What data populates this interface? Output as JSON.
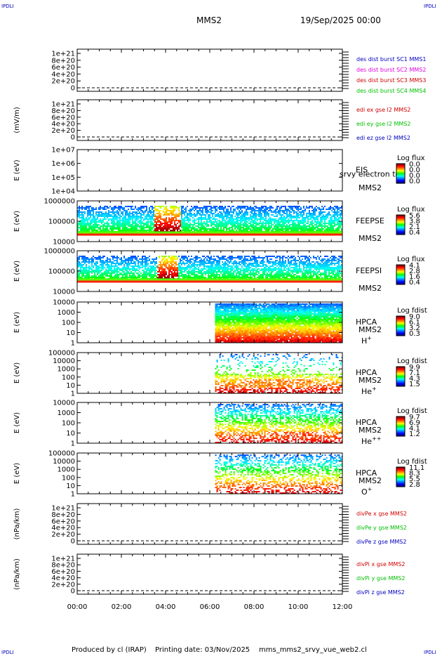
{
  "corner_labels": {
    "tl": "IPDLI",
    "tr": "IPDLI",
    "bl": "IPDLI",
    "br": "IPDLI"
  },
  "header": {
    "spacecraft": "MMS2",
    "date": "19/Sep/2025 00:00"
  },
  "footer": {
    "produced_by": "Produced by cl (IRAP)",
    "printing_date": "Printing date: 03/Nov/2025",
    "filename": "mms_mms2_srvy_vue_web2.cl"
  },
  "x_ticks": [
    "00:00",
    "02:00",
    "04:00",
    "06:00",
    "08:00",
    "10:00",
    "12:00"
  ],
  "colors": {
    "red": "#d00000",
    "magenta": "#e000e0",
    "green": "#00c000",
    "blue": "#0000c0"
  },
  "chart_data": [
    {
      "type": "line",
      "id": "des-dist",
      "ylabel": "",
      "y_ticks": [
        "1e+21",
        "8e+20",
        "6e+20",
        "4e+20",
        "2e+20",
        "0"
      ],
      "legend": [
        {
          "name": "des dist burst SC1 MMS1",
          "color": "#0000c0"
        },
        {
          "name": "des dist burst SC2 MMS2",
          "color": "#e000e0"
        },
        {
          "name": "des dist burst SC3 MMS3",
          "color": "#d00000"
        },
        {
          "name": "des dist burst SC4 MMS4",
          "color": "#00c000"
        }
      ]
    },
    {
      "type": "line",
      "id": "edi",
      "ylabel": "(mV/m)",
      "y_ticks": [
        "1e+21",
        "8e+20",
        "6e+20",
        "4e+20",
        "2e+20",
        "0"
      ],
      "legend": [
        {
          "name": "edi ex gse l2 MMS2",
          "color": "#d00000"
        },
        {
          "name": "edi ey gse l2 MMS2",
          "color": "#00c000"
        },
        {
          "name": "edi ez gse l2 MMS2",
          "color": "#0000c0"
        }
      ]
    },
    {
      "type": "heatmap",
      "id": "eis",
      "ylabel": "E (eV)",
      "y_ticks": [
        "1e+07",
        "1e+06",
        "1e+05",
        "1e+04"
      ],
      "instrument": "EIS",
      "overlay": "srvy electron to",
      "sc": "MMS2",
      "species": "",
      "cbar_title": "Log flux",
      "cbar_ticks": [
        "0.0",
        "0.0",
        "0.0",
        "0.0"
      ]
    },
    {
      "type": "heatmap",
      "id": "feepse",
      "ylabel": "E (eV)",
      "y_ticks": [
        "1000000",
        "100000",
        "10000"
      ],
      "instrument": "FEEPSE",
      "sc": "MMS2",
      "species": "",
      "cbar_title": "Log flux",
      "cbar_ticks": [
        "5.6",
        "3.8",
        "2.1",
        "0.4"
      ]
    },
    {
      "type": "heatmap",
      "id": "feepsi",
      "ylabel": "E (eV)",
      "y_ticks": [
        "1000000",
        "100000",
        "10000"
      ],
      "instrument": "FEEPSI",
      "sc": "MMS2",
      "species": "",
      "cbar_title": "Log flux",
      "cbar_ticks": [
        "4.1",
        "2.8",
        "1.6",
        "0.4"
      ]
    },
    {
      "type": "heatmap",
      "id": "hpca-h",
      "ylabel": "E (eV)",
      "y_ticks": [
        "10000",
        "1000",
        "100",
        "10",
        "1"
      ],
      "instrument": "HPCA",
      "sc": "MMS2",
      "species": "H",
      "species_sup": "+",
      "cbar_title": "Log fdist",
      "cbar_ticks": [
        "9.0",
        "6.1",
        "3.2",
        "0.3"
      ]
    },
    {
      "type": "heatmap",
      "id": "hpca-he",
      "ylabel": "E (eV)",
      "y_ticks": [
        "100000",
        "10000",
        "1000",
        "100",
        "10",
        "1"
      ],
      "instrument": "HPCA",
      "sc": "MMS2",
      "species": "He",
      "species_sup": "+",
      "cbar_title": "Log fdist",
      "cbar_ticks": [
        "9.9",
        "7.1",
        "4.3",
        "1.5"
      ]
    },
    {
      "type": "heatmap",
      "id": "hpca-he2",
      "ylabel": "E (eV)",
      "y_ticks": [
        "10000",
        "1000",
        "100",
        "10",
        "1"
      ],
      "instrument": "HPCA",
      "sc": "MMS2",
      "species": "He",
      "species_sup": "++",
      "cbar_title": "Log fdist",
      "cbar_ticks": [
        "9.7",
        "6.9",
        "4.1",
        "1.2"
      ]
    },
    {
      "type": "heatmap",
      "id": "hpca-o",
      "ylabel": "E (eV)",
      "y_ticks": [
        "100000",
        "10000",
        "1000",
        "100",
        "10",
        "1"
      ],
      "instrument": "HPCA",
      "sc": "MMS2",
      "species": "O",
      "species_sup": "+",
      "cbar_title": "Log fdist",
      "cbar_ticks": [
        "11.1",
        "8.3",
        "5.5",
        "2.8"
      ]
    },
    {
      "type": "line",
      "id": "divpe",
      "ylabel": "(nPa/km)",
      "y_ticks": [
        "1e+21",
        "8e+20",
        "6e+20",
        "4e+20",
        "2e+20",
        "0"
      ],
      "legend": [
        {
          "name": "divPe x gse MMS2",
          "color": "#d00000"
        },
        {
          "name": "divPe y gse MMS2",
          "color": "#00c000"
        },
        {
          "name": "divPe z gse MMS2",
          "color": "#0000c0"
        }
      ]
    },
    {
      "type": "line",
      "id": "divpi",
      "ylabel": "(nPa/km)",
      "y_ticks": [
        "1e+21",
        "8e+20",
        "6e+20",
        "4e+20",
        "2e+20",
        "0"
      ],
      "legend": [
        {
          "name": "divPi x gse MMS2",
          "color": "#d00000"
        },
        {
          "name": "divPi y gse MMS2",
          "color": "#00c000"
        },
        {
          "name": "divPi z gse MMS2",
          "color": "#0000c0"
        }
      ]
    }
  ]
}
